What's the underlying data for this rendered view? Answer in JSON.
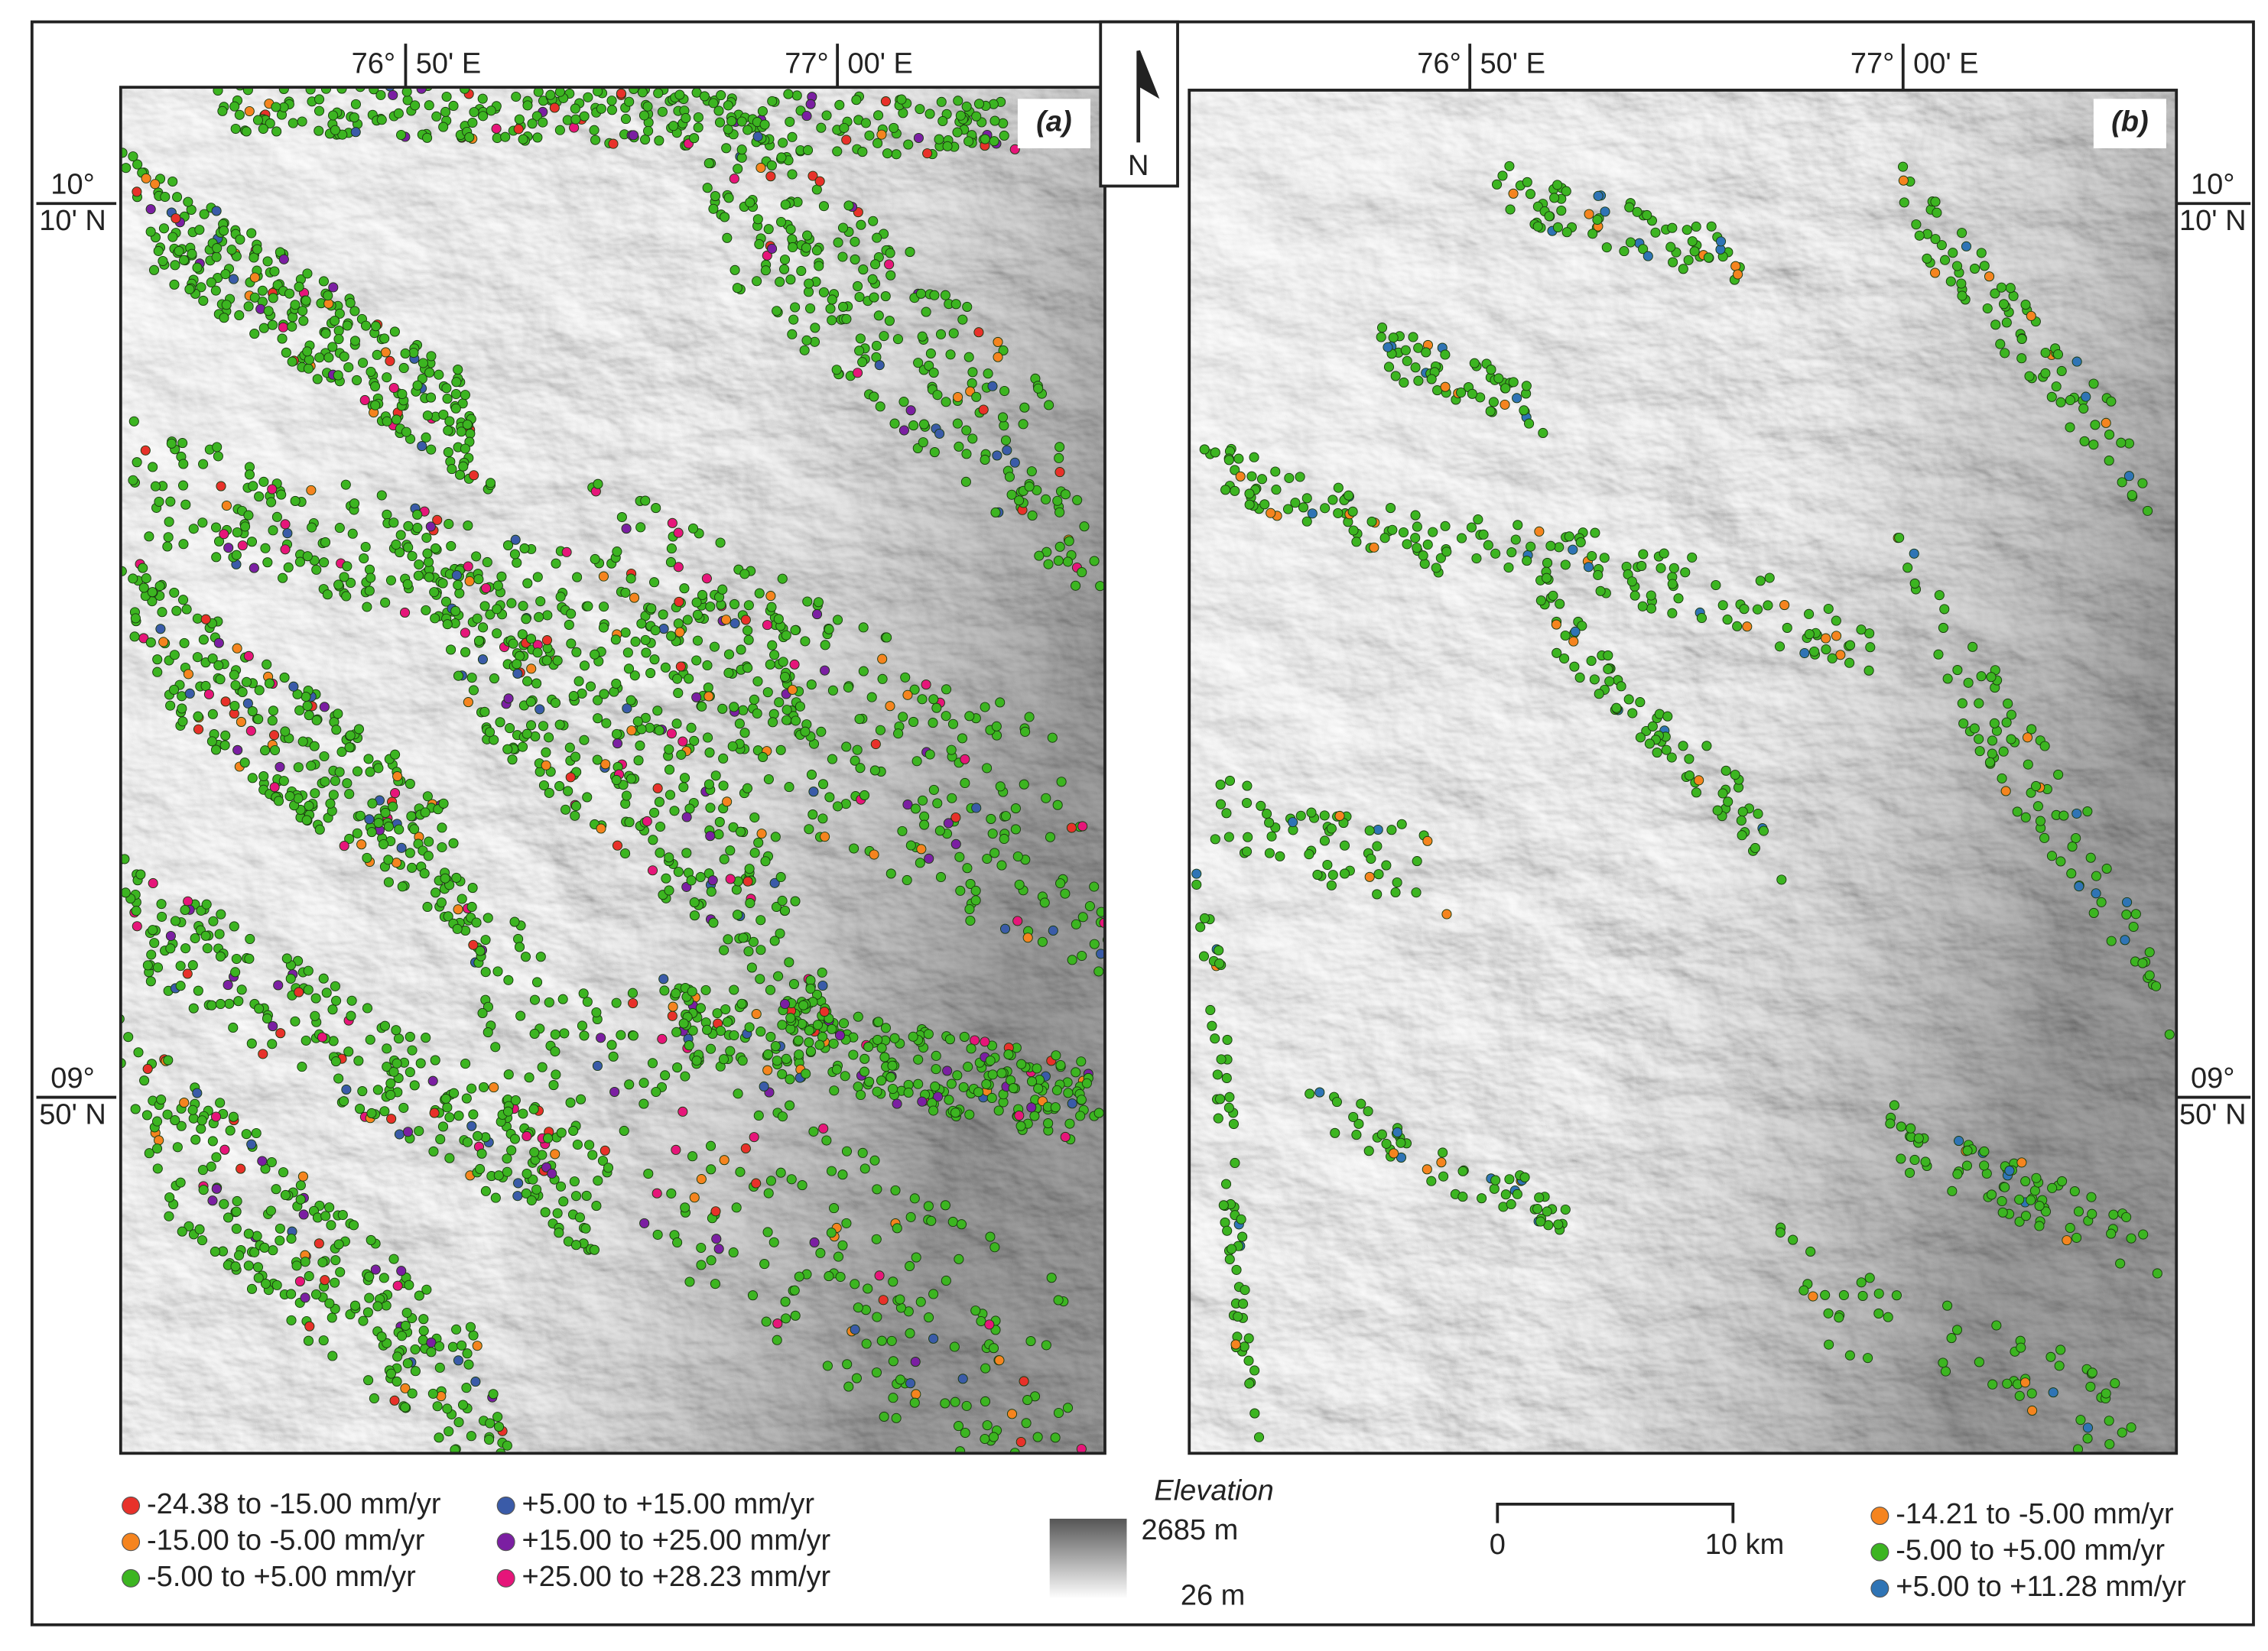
{
  "north_arrow": {
    "label": "N"
  },
  "panels": [
    {
      "label": "(a)"
    },
    {
      "label": "(b)"
    }
  ],
  "longitude_labels": [
    {
      "degrees": "76°",
      "minutes": "50' E"
    },
    {
      "degrees": "77°",
      "minutes": "00' E"
    }
  ],
  "latitude_labels": [
    {
      "degrees": "10°",
      "minutes": "10' N"
    },
    {
      "degrees": "09°",
      "minutes": "50' N"
    }
  ],
  "legend_a": {
    "items": [
      {
        "label": "-24.38 to -15.00 mm/yr",
        "color": "#e8312a"
      },
      {
        "label": "-15.00 to -5.00 mm/yr",
        "color": "#f5841f"
      },
      {
        "label": "-5.00 to +5.00 mm/yr",
        "color": "#3cb521"
      },
      {
        "label": "+5.00 to +15.00 mm/yr",
        "color": "#3a5ba8"
      },
      {
        "label": "+15.00 to +25.00 mm/yr",
        "color": "#7b1fa2"
      },
      {
        "label": "+25.00 to +28.23 mm/yr",
        "color": "#e6157a"
      }
    ]
  },
  "elevation": {
    "title": "Elevation",
    "max": "2685 m",
    "min": "26 m"
  },
  "scale_bar": {
    "start": "0",
    "end": "10 km"
  },
  "legend_b": {
    "items": [
      {
        "label": "-14.21 to -5.00 mm/yr",
        "color": "#f5841f"
      },
      {
        "label": "-5.00 to +5.00 mm/yr",
        "color": "#3cb521"
      },
      {
        "label": "+5.00 to +11.28 mm/yr",
        "color": "#2f74b5"
      }
    ]
  }
}
